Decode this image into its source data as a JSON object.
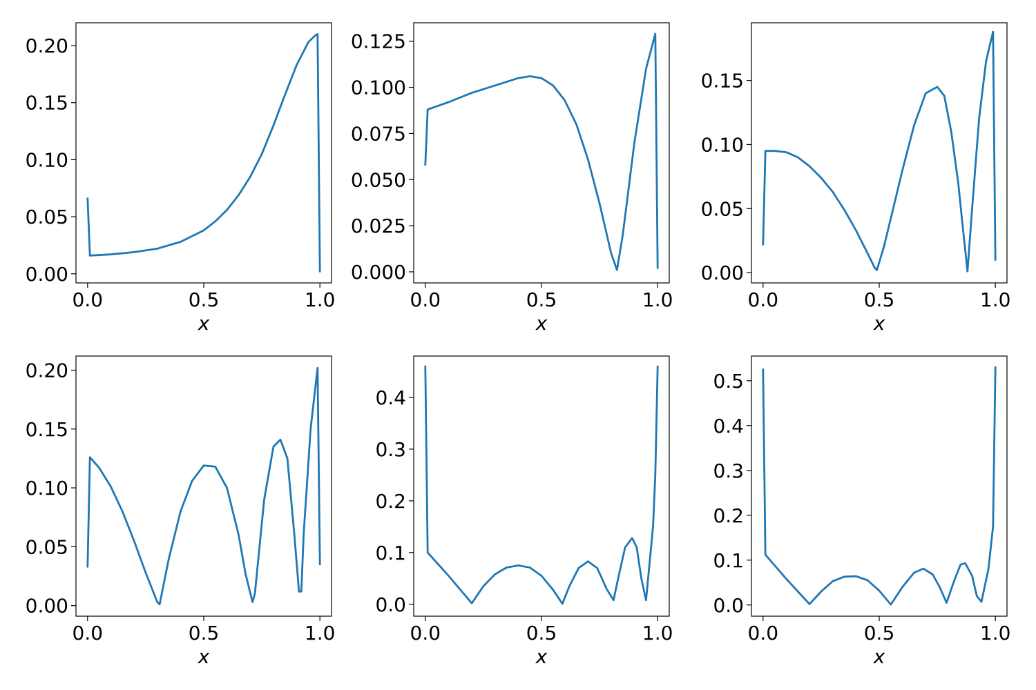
{
  "line_color": "#1f77b4",
  "chart_data": [
    {
      "type": "line",
      "xlabel": "x",
      "xlim": [
        -0.05,
        1.05
      ],
      "ylim": [
        -0.008,
        0.22
      ],
      "xticks": [
        0.0,
        0.5,
        1.0
      ],
      "xtick_labels": [
        "0.0",
        "0.5",
        "1.0"
      ],
      "yticks": [
        0.0,
        0.05,
        0.1,
        0.15,
        0.2
      ],
      "ytick_labels": [
        "0.00",
        "0.05",
        "0.10",
        "0.15",
        "0.20"
      ],
      "series": [
        {
          "x": [
            0.0,
            0.01,
            0.1,
            0.2,
            0.3,
            0.4,
            0.5,
            0.55,
            0.6,
            0.65,
            0.7,
            0.75,
            0.8,
            0.85,
            0.9,
            0.95,
            0.98,
            0.99,
            1.0
          ],
          "y": [
            0.066,
            0.016,
            0.017,
            0.019,
            0.022,
            0.028,
            0.038,
            0.046,
            0.056,
            0.069,
            0.085,
            0.105,
            0.13,
            0.157,
            0.183,
            0.203,
            0.209,
            0.21,
            0.002
          ]
        }
      ]
    },
    {
      "type": "line",
      "xlabel": "x",
      "xlim": [
        -0.05,
        1.05
      ],
      "ylim": [
        -0.006,
        0.135
      ],
      "xticks": [
        0.0,
        0.5,
        1.0
      ],
      "xtick_labels": [
        "0.0",
        "0.5",
        "1.0"
      ],
      "yticks": [
        0.0,
        0.025,
        0.05,
        0.075,
        0.1,
        0.125
      ],
      "ytick_labels": [
        "0.000",
        "0.025",
        "0.050",
        "0.075",
        "0.100",
        "0.125"
      ],
      "series": [
        {
          "x": [
            0.0,
            0.01,
            0.1,
            0.2,
            0.3,
            0.4,
            0.45,
            0.5,
            0.55,
            0.6,
            0.65,
            0.7,
            0.75,
            0.8,
            0.825,
            0.85,
            0.9,
            0.95,
            0.99,
            1.0
          ],
          "y": [
            0.058,
            0.088,
            0.092,
            0.097,
            0.101,
            0.105,
            0.106,
            0.105,
            0.101,
            0.093,
            0.08,
            0.061,
            0.037,
            0.01,
            0.001,
            0.02,
            0.07,
            0.11,
            0.129,
            0.002
          ]
        }
      ]
    },
    {
      "type": "line",
      "xlabel": "x",
      "xlim": [
        -0.05,
        1.05
      ],
      "ylim": [
        -0.008,
        0.195
      ],
      "xticks": [
        0.0,
        0.5,
        1.0
      ],
      "xtick_labels": [
        "0.0",
        "0.5",
        "1.0"
      ],
      "yticks": [
        0.0,
        0.05,
        0.1,
        0.15
      ],
      "ytick_labels": [
        "0.00",
        "0.05",
        "0.10",
        "0.15"
      ],
      "series": [
        {
          "x": [
            0.0,
            0.01,
            0.05,
            0.1,
            0.15,
            0.2,
            0.25,
            0.3,
            0.35,
            0.4,
            0.45,
            0.48,
            0.49,
            0.52,
            0.56,
            0.6,
            0.65,
            0.7,
            0.75,
            0.78,
            0.81,
            0.84,
            0.86,
            0.88,
            0.9,
            0.93,
            0.96,
            0.99,
            1.0
          ],
          "y": [
            0.022,
            0.095,
            0.095,
            0.094,
            0.09,
            0.083,
            0.074,
            0.063,
            0.049,
            0.033,
            0.015,
            0.004,
            0.002,
            0.02,
            0.05,
            0.08,
            0.115,
            0.14,
            0.145,
            0.138,
            0.11,
            0.07,
            0.035,
            0.001,
            0.05,
            0.12,
            0.165,
            0.188,
            0.01
          ]
        }
      ]
    },
    {
      "type": "line",
      "xlabel": "x",
      "xlim": [
        -0.05,
        1.05
      ],
      "ylim": [
        -0.009,
        0.212
      ],
      "xticks": [
        0.0,
        0.5,
        1.0
      ],
      "xtick_labels": [
        "0.0",
        "0.5",
        "1.0"
      ],
      "yticks": [
        0.0,
        0.05,
        0.1,
        0.15,
        0.2
      ],
      "ytick_labels": [
        "0.00",
        "0.05",
        "0.10",
        "0.15",
        "0.20"
      ],
      "series": [
        {
          "x": [
            0.0,
            0.01,
            0.05,
            0.1,
            0.15,
            0.2,
            0.25,
            0.3,
            0.31,
            0.35,
            0.4,
            0.45,
            0.5,
            0.55,
            0.6,
            0.65,
            0.68,
            0.71,
            0.72,
            0.76,
            0.8,
            0.83,
            0.86,
            0.89,
            0.91,
            0.92,
            0.93,
            0.96,
            0.99,
            1.0
          ],
          "y": [
            0.033,
            0.126,
            0.117,
            0.101,
            0.08,
            0.055,
            0.028,
            0.003,
            0.001,
            0.04,
            0.08,
            0.106,
            0.119,
            0.118,
            0.1,
            0.06,
            0.027,
            0.003,
            0.01,
            0.09,
            0.135,
            0.141,
            0.125,
            0.06,
            0.012,
            0.012,
            0.06,
            0.15,
            0.202,
            0.035
          ]
        }
      ]
    },
    {
      "type": "line",
      "xlabel": "x",
      "xlim": [
        -0.05,
        1.05
      ],
      "ylim": [
        -0.023,
        0.48
      ],
      "xticks": [
        0.0,
        0.5,
        1.0
      ],
      "xtick_labels": [
        "0.0",
        "0.5",
        "1.0"
      ],
      "yticks": [
        0.0,
        0.1,
        0.2,
        0.3,
        0.4
      ],
      "ytick_labels": [
        "0.0",
        "0.1",
        "0.2",
        "0.3",
        "0.4"
      ],
      "series": [
        {
          "x": [
            0.0,
            0.01,
            0.1,
            0.2,
            0.25,
            0.3,
            0.35,
            0.4,
            0.45,
            0.5,
            0.55,
            0.59,
            0.62,
            0.66,
            0.7,
            0.74,
            0.78,
            0.81,
            0.83,
            0.86,
            0.89,
            0.91,
            0.93,
            0.95,
            0.98,
            0.99,
            1.0
          ],
          "y": [
            0.46,
            0.1,
            0.055,
            0.002,
            0.035,
            0.058,
            0.071,
            0.075,
            0.071,
            0.055,
            0.028,
            0.001,
            0.035,
            0.07,
            0.083,
            0.07,
            0.03,
            0.008,
            0.05,
            0.11,
            0.128,
            0.11,
            0.05,
            0.008,
            0.15,
            0.25,
            0.46
          ]
        }
      ]
    },
    {
      "type": "line",
      "xlabel": "x",
      "xlim": [
        -0.05,
        1.05
      ],
      "ylim": [
        -0.025,
        0.555
      ],
      "xticks": [
        0.0,
        0.5,
        1.0
      ],
      "xtick_labels": [
        "0.0",
        "0.5",
        "1.0"
      ],
      "yticks": [
        0.0,
        0.1,
        0.2,
        0.3,
        0.4,
        0.5
      ],
      "ytick_labels": [
        "0.0",
        "0.1",
        "0.2",
        "0.3",
        "0.4",
        "0.5"
      ],
      "series": [
        {
          "x": [
            0.0,
            0.01,
            0.1,
            0.2,
            0.25,
            0.3,
            0.35,
            0.4,
            0.45,
            0.5,
            0.55,
            0.6,
            0.65,
            0.69,
            0.73,
            0.76,
            0.79,
            0.82,
            0.85,
            0.87,
            0.9,
            0.92,
            0.94,
            0.97,
            0.99,
            1.0
          ],
          "y": [
            0.525,
            0.112,
            0.058,
            0.002,
            0.03,
            0.053,
            0.063,
            0.064,
            0.055,
            0.032,
            0.001,
            0.04,
            0.072,
            0.081,
            0.068,
            0.04,
            0.005,
            0.05,
            0.09,
            0.093,
            0.065,
            0.02,
            0.007,
            0.08,
            0.175,
            0.53
          ]
        }
      ]
    }
  ]
}
